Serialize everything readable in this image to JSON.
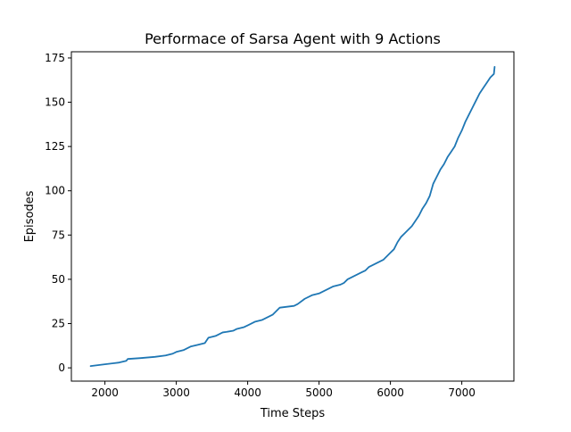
{
  "chart_data": {
    "type": "line",
    "title": "Performace of Sarsa Agent with 9 Actions",
    "xlabel": "Time Steps",
    "ylabel": "Episodes",
    "xlim": [
      1530,
      7730
    ],
    "ylim": [
      -7.5,
      178.5
    ],
    "xticks": [
      2000,
      3000,
      4000,
      5000,
      6000,
      7000
    ],
    "yticks": [
      0,
      25,
      50,
      75,
      100,
      125,
      150,
      175
    ],
    "grid": false,
    "series": [
      {
        "color": "#1f77b4",
        "x": [
          1800,
          2000,
          2200,
          2300,
          2320,
          2500,
          2700,
          2850,
          2950,
          3000,
          3100,
          3150,
          3200,
          3300,
          3400,
          3450,
          3550,
          3650,
          3700,
          3800,
          3850,
          3950,
          4000,
          4100,
          4200,
          4250,
          4300,
          4350,
          4400,
          4450,
          4550,
          4650,
          4700,
          4800,
          4900,
          5000,
          5050,
          5100,
          5150,
          5200,
          5300,
          5350,
          5400,
          5450,
          5500,
          5550,
          5600,
          5650,
          5700,
          5750,
          5800,
          5850,
          5900,
          5950,
          6000,
          6050,
          6100,
          6150,
          6200,
          6250,
          6300,
          6350,
          6400,
          6450,
          6500,
          6550,
          6600,
          6650,
          6700,
          6750,
          6800,
          6850,
          6900,
          6950,
          7000,
          7050,
          7100,
          7150,
          7200,
          7250,
          7300,
          7350,
          7400,
          7450,
          7460
        ],
        "y": [
          1,
          2,
          3,
          4,
          5,
          5.5,
          6.2,
          7,
          8,
          9,
          10,
          11,
          12,
          13,
          14,
          17,
          18,
          20,
          20.3,
          21,
          22,
          23,
          24,
          26,
          27,
          28,
          29,
          30,
          32,
          34,
          34.5,
          35,
          36,
          39,
          41,
          42,
          43,
          44,
          45,
          46,
          47,
          48,
          50,
          51,
          52,
          53,
          54,
          55,
          57,
          58,
          59,
          60,
          61,
          63,
          65,
          67,
          71,
          74,
          76,
          78,
          80,
          83,
          86,
          90,
          93,
          97,
          104,
          108,
          112,
          115,
          119,
          122,
          125,
          130,
          134,
          139,
          143,
          147,
          151,
          155,
          158,
          161,
          164,
          166,
          170
        ]
      }
    ]
  }
}
